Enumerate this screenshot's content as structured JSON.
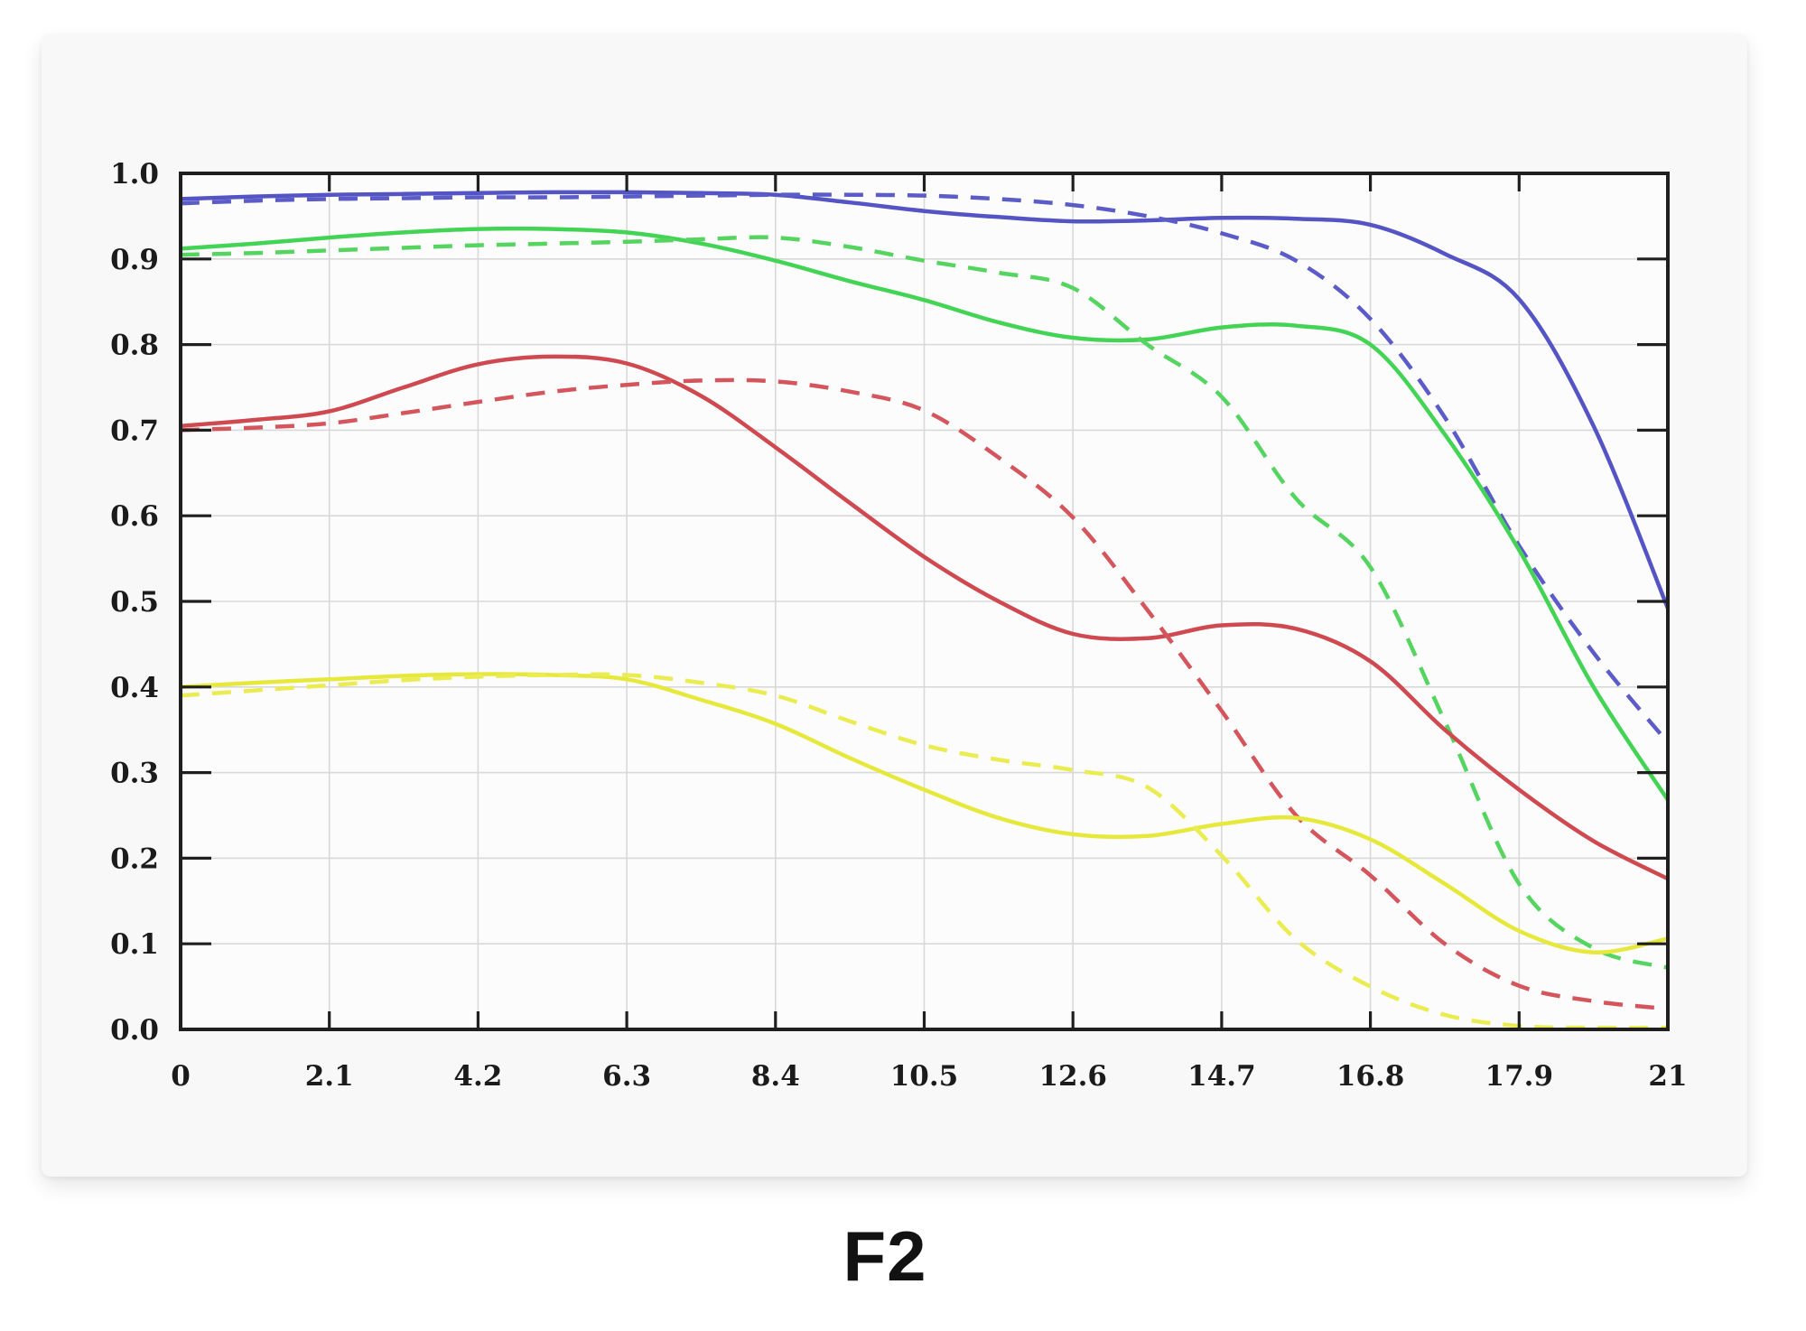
{
  "chart_data": {
    "type": "line",
    "title": "F2",
    "x_tick_labels": [
      "0",
      "2.1",
      "4.2",
      "6.3",
      "8.4",
      "10.5",
      "12.6",
      "14.7",
      "16.8",
      "17.9",
      "21"
    ],
    "y_tick_labels": [
      "0.0",
      "0.1",
      "0.2",
      "0.3",
      "0.4",
      "0.5",
      "0.6",
      "0.7",
      "0.8",
      "0.9",
      "1.0"
    ],
    "ylim": [
      0.0,
      1.0
    ],
    "grid": true,
    "legend": "none",
    "x_sampling": "samples at uniform tick positions 0-10 in half-tick steps (ticks evenly spaced as drawn)",
    "sample_x": [
      0,
      0.5,
      1,
      1.5,
      2,
      2.5,
      3,
      3.5,
      4,
      4.5,
      5,
      5.5,
      6,
      6.5,
      7,
      7.5,
      8,
      8.5,
      9,
      9.5,
      10
    ],
    "series": [
      {
        "name": "blue-solid",
        "color": "#5454c4",
        "dash": false,
        "values": [
          0.97,
          0.973,
          0.975,
          0.976,
          0.977,
          0.978,
          0.978,
          0.977,
          0.975,
          0.966,
          0.956,
          0.949,
          0.944,
          0.945,
          0.948,
          0.947,
          0.94,
          0.906,
          0.853,
          0.705,
          0.492
        ]
      },
      {
        "name": "blue-dashed",
        "color": "#5c5cc8",
        "dash": true,
        "values": [
          0.965,
          0.968,
          0.97,
          0.971,
          0.972,
          0.972,
          0.973,
          0.974,
          0.975,
          0.975,
          0.974,
          0.97,
          0.963,
          0.95,
          0.93,
          0.898,
          0.83,
          0.715,
          0.565,
          0.44,
          0.335
        ]
      },
      {
        "name": "green-solid",
        "color": "#44d455",
        "dash": false,
        "values": [
          0.912,
          0.918,
          0.925,
          0.931,
          0.935,
          0.935,
          0.931,
          0.918,
          0.898,
          0.874,
          0.852,
          0.826,
          0.808,
          0.806,
          0.82,
          0.822,
          0.8,
          0.695,
          0.56,
          0.4,
          0.268
        ]
      },
      {
        "name": "green-dashed",
        "color": "#55d560",
        "dash": true,
        "values": [
          0.905,
          0.907,
          0.91,
          0.913,
          0.916,
          0.918,
          0.92,
          0.923,
          0.925,
          0.914,
          0.898,
          0.884,
          0.866,
          0.8,
          0.739,
          0.62,
          0.54,
          0.36,
          0.17,
          0.095,
          0.072
        ]
      },
      {
        "name": "red-solid",
        "color": "#cf4950",
        "dash": false,
        "values": [
          0.705,
          0.712,
          0.722,
          0.75,
          0.777,
          0.786,
          0.778,
          0.74,
          0.68,
          0.615,
          0.552,
          0.5,
          0.462,
          0.457,
          0.472,
          0.468,
          0.43,
          0.35,
          0.28,
          0.22,
          0.176
        ]
      },
      {
        "name": "red-dashed",
        "color": "#d4555c",
        "dash": true,
        "values": [
          0.7,
          0.703,
          0.708,
          0.72,
          0.733,
          0.745,
          0.753,
          0.758,
          0.757,
          0.745,
          0.723,
          0.668,
          0.598,
          0.49,
          0.372,
          0.25,
          0.18,
          0.1,
          0.051,
          0.033,
          0.024
        ]
      },
      {
        "name": "yellow-solid",
        "color": "#e6e93c",
        "dash": false,
        "values": [
          0.4,
          0.405,
          0.409,
          0.413,
          0.415,
          0.414,
          0.409,
          0.385,
          0.357,
          0.317,
          0.28,
          0.247,
          0.228,
          0.226,
          0.24,
          0.247,
          0.222,
          0.17,
          0.115,
          0.09,
          0.106
        ]
      },
      {
        "name": "yellow-dashed",
        "color": "#eaec52",
        "dash": true,
        "values": [
          0.39,
          0.396,
          0.402,
          0.408,
          0.412,
          0.414,
          0.414,
          0.405,
          0.39,
          0.36,
          0.332,
          0.315,
          0.303,
          0.283,
          0.203,
          0.105,
          0.05,
          0.017,
          0.004,
          0.002,
          0.002
        ]
      }
    ]
  },
  "style": {
    "page_bg": "#ffffff",
    "card_bg": "#f8f8f8",
    "plot_bg": "#fcfcfc",
    "axis_color": "#1f1f1f",
    "grid_color": "#d9d9d9",
    "label_color": "#1b1b1b"
  }
}
